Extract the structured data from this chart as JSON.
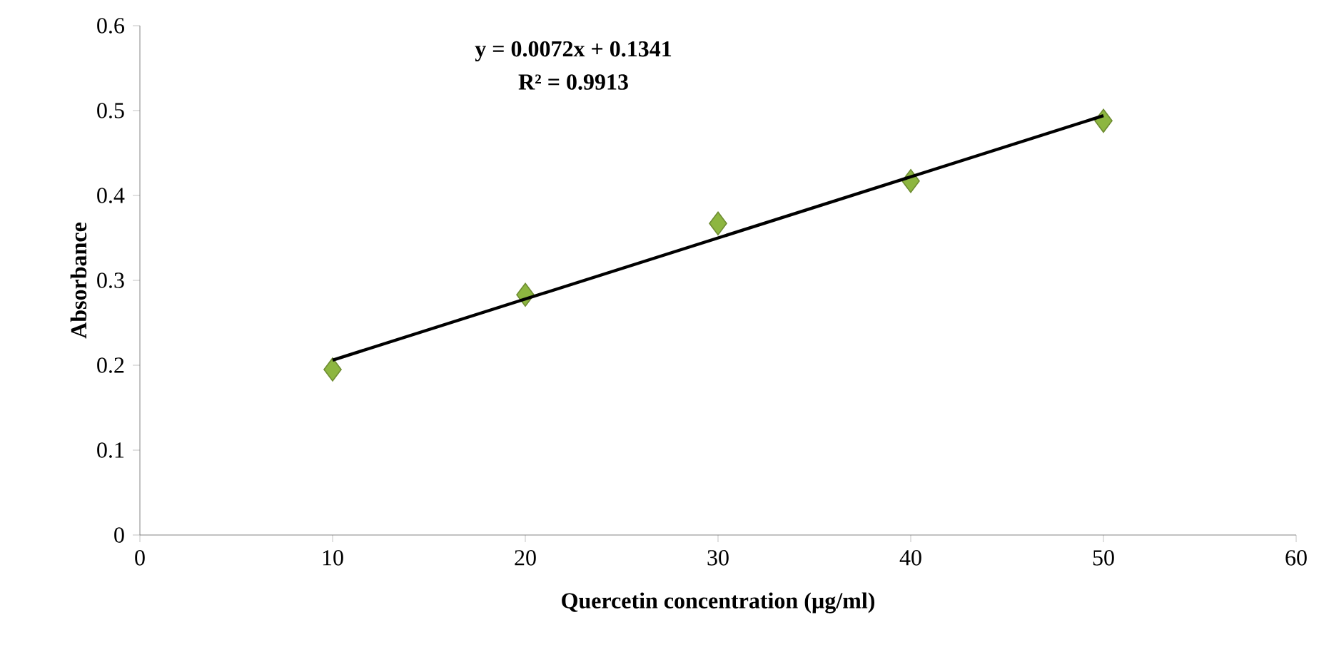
{
  "chart_data": {
    "type": "scatter",
    "xlabel": "Quercetin concentration (µg/ml)",
    "ylabel": "Absorbance",
    "x": [
      10,
      20,
      30,
      40,
      50
    ],
    "series": [
      {
        "type": "scatter",
        "color": "#8db640",
        "values": [
          0.195,
          0.283,
          0.367,
          0.417,
          0.488
        ],
        "marker": "diamond"
      },
      {
        "type": "line",
        "color": "#000000",
        "x": [
          10,
          50
        ],
        "values": [
          0.206,
          0.494
        ],
        "marker": "none",
        "line_style": "solid"
      }
    ],
    "annotations": [
      "y = 0.0072x + 0.1341",
      "R² = 0.9913"
    ],
    "xlim": [
      0,
      60
    ],
    "xticks": [
      0,
      10,
      20,
      30,
      40,
      50,
      60
    ],
    "ylim": [
      0,
      0.6
    ],
    "yticks": [
      0,
      0.1,
      0.2,
      0.3,
      0.4,
      0.5,
      0.6
    ],
    "grid": false
  }
}
